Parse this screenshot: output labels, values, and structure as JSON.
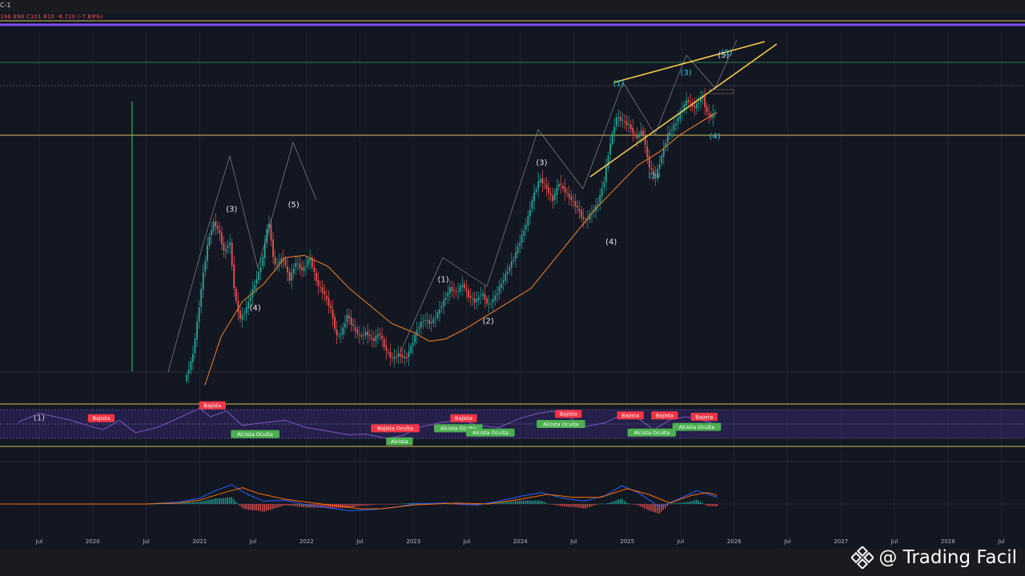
{
  "header": {
    "symbol": "C-1",
    "ohlc": "196.898 C101.810 -8.720 (-7.89%)"
  },
  "watermark": {
    "logo": "binance-diamond-icon",
    "text": "@ Trading Facil"
  },
  "colors": {
    "background": "#131722",
    "bull": "#26a69a",
    "bear": "#ef5350",
    "ma": "#e0792a",
    "rsi": "#7e57c2",
    "macd": "#2962ff",
    "signal": "#ff6d00",
    "wedge": "#f7c948",
    "purple_band": "#7b4dff",
    "bull_label": "#4caf50",
    "bear_label": "#f23645",
    "wave_white": "#e6e6e6",
    "wave_teal": "#26c6da"
  },
  "chart_data": {
    "type": "line",
    "x_axis": {
      "ticks": [
        "Jul",
        "2020",
        "Jul",
        "2021",
        "Jul",
        "2022",
        "Jul",
        "2023",
        "Jul",
        "2024",
        "Jul",
        "2025",
        "Jul",
        "2026",
        "Jul",
        "2027",
        "Jul",
        "2028",
        "Jul"
      ]
    },
    "price": {
      "points": [
        [
          2020.88,
          -2
        ],
        [
          2020.95,
          3
        ],
        [
          2021.0,
          12
        ],
        [
          2021.05,
          22
        ],
        [
          2021.1,
          30
        ],
        [
          2021.15,
          34
        ],
        [
          2021.2,
          32
        ],
        [
          2021.25,
          27
        ],
        [
          2021.3,
          30
        ],
        [
          2021.35,
          17
        ],
        [
          2021.4,
          12
        ],
        [
          2021.45,
          14
        ],
        [
          2021.52,
          19
        ],
        [
          2021.58,
          23
        ],
        [
          2021.62,
          27
        ],
        [
          2021.66,
          35
        ],
        [
          2021.72,
          24
        ],
        [
          2021.8,
          26
        ],
        [
          2021.86,
          21
        ],
        [
          2021.92,
          25
        ],
        [
          2021.98,
          23
        ],
        [
          2022.05,
          26
        ],
        [
          2022.12,
          20
        ],
        [
          2022.18,
          18
        ],
        [
          2022.25,
          14
        ],
        [
          2022.3,
          8
        ],
        [
          2022.35,
          9
        ],
        [
          2022.4,
          13
        ],
        [
          2022.46,
          10
        ],
        [
          2022.52,
          8
        ],
        [
          2022.58,
          9
        ],
        [
          2022.64,
          7
        ],
        [
          2022.7,
          9
        ],
        [
          2022.76,
          5
        ],
        [
          2022.82,
          3
        ],
        [
          2022.88,
          4
        ],
        [
          2022.95,
          3
        ],
        [
          2023.0,
          6
        ],
        [
          2023.06,
          10
        ],
        [
          2023.12,
          12
        ],
        [
          2023.18,
          11
        ],
        [
          2023.24,
          13
        ],
        [
          2023.3,
          16
        ],
        [
          2023.36,
          19
        ],
        [
          2023.42,
          18
        ],
        [
          2023.48,
          20
        ],
        [
          2023.54,
          17
        ],
        [
          2023.6,
          16
        ],
        [
          2023.66,
          18
        ],
        [
          2023.72,
          15
        ],
        [
          2023.78,
          17
        ],
        [
          2023.84,
          20
        ],
        [
          2023.9,
          23
        ],
        [
          2023.96,
          26
        ],
        [
          2024.02,
          30
        ],
        [
          2024.08,
          34
        ],
        [
          2024.14,
          40
        ],
        [
          2024.2,
          44
        ],
        [
          2024.26,
          42
        ],
        [
          2024.32,
          39
        ],
        [
          2024.38,
          43
        ],
        [
          2024.44,
          41
        ],
        [
          2024.5,
          39
        ],
        [
          2024.56,
          37
        ],
        [
          2024.62,
          34
        ],
        [
          2024.68,
          36
        ],
        [
          2024.74,
          38
        ],
        [
          2024.8,
          43
        ],
        [
          2024.86,
          52
        ],
        [
          2024.92,
          58
        ],
        [
          2024.98,
          57
        ],
        [
          2025.04,
          56
        ],
        [
          2025.1,
          53
        ],
        [
          2025.16,
          55
        ],
        [
          2025.22,
          47
        ],
        [
          2025.28,
          44
        ],
        [
          2025.34,
          49
        ],
        [
          2025.4,
          54
        ],
        [
          2025.46,
          56
        ],
        [
          2025.52,
          59
        ],
        [
          2025.58,
          62
        ],
        [
          2025.64,
          60
        ],
        [
          2025.68,
          61
        ],
        [
          2025.72,
          63
        ],
        [
          2025.76,
          59
        ],
        [
          2025.8,
          58
        ],
        [
          2025.84,
          59
        ]
      ]
    },
    "ma": {
      "points": [
        [
          2021.05,
          -3
        ],
        [
          2021.2,
          8
        ],
        [
          2021.4,
          16
        ],
        [
          2021.6,
          20
        ],
        [
          2021.8,
          26
        ],
        [
          2021.98,
          26.5
        ],
        [
          2022.2,
          24
        ],
        [
          2022.4,
          19
        ],
        [
          2022.6,
          15
        ],
        [
          2022.8,
          11
        ],
        [
          2023.0,
          9
        ],
        [
          2023.15,
          7
        ],
        [
          2023.3,
          7.5
        ],
        [
          2023.5,
          10
        ],
        [
          2023.7,
          13
        ],
        [
          2023.9,
          16
        ],
        [
          2024.1,
          19
        ],
        [
          2024.3,
          25
        ],
        [
          2024.5,
          31
        ],
        [
          2024.7,
          37
        ],
        [
          2024.9,
          42
        ],
        [
          2025.1,
          47
        ],
        [
          2025.3,
          50
        ],
        [
          2025.5,
          54
        ],
        [
          2025.7,
          57
        ],
        [
          2025.84,
          59
        ]
      ]
    },
    "rsi": {
      "upper_band": 70,
      "lower_band": 30,
      "points": [
        [
          2019.3,
          52
        ],
        [
          2019.5,
          65
        ],
        [
          2019.65,
          60
        ],
        [
          2019.8,
          55
        ],
        [
          2019.95,
          48
        ],
        [
          2020.1,
          42
        ],
        [
          2020.25,
          55
        ],
        [
          2020.4,
          38
        ],
        [
          2020.6,
          45
        ],
        [
          2020.8,
          58
        ],
        [
          2021.0,
          72
        ],
        [
          2021.1,
          60
        ],
        [
          2021.25,
          68
        ],
        [
          2021.4,
          48
        ],
        [
          2021.6,
          52
        ],
        [
          2021.8,
          55
        ],
        [
          2022.0,
          45
        ],
        [
          2022.2,
          40
        ],
        [
          2022.4,
          35
        ],
        [
          2022.55,
          36
        ],
        [
          2022.75,
          30
        ],
        [
          2022.9,
          34
        ],
        [
          2023.05,
          45
        ],
        [
          2023.25,
          52
        ],
        [
          2023.45,
          56
        ],
        [
          2023.6,
          48
        ],
        [
          2023.8,
          45
        ],
        [
          2024.0,
          58
        ],
        [
          2024.15,
          64
        ],
        [
          2024.3,
          68
        ],
        [
          2024.45,
          60
        ],
        [
          2024.6,
          46
        ],
        [
          2024.8,
          52
        ],
        [
          2024.95,
          63
        ],
        [
          2025.1,
          58
        ],
        [
          2025.25,
          42
        ],
        [
          2025.4,
          56
        ],
        [
          2025.55,
          60
        ],
        [
          2025.7,
          55
        ],
        [
          2025.84,
          50
        ]
      ]
    },
    "macd": {
      "macd_points": [
        [
          2019.0,
          0
        ],
        [
          2020.5,
          0
        ],
        [
          2020.8,
          2
        ],
        [
          2021.0,
          6
        ],
        [
          2021.15,
          14
        ],
        [
          2021.3,
          20
        ],
        [
          2021.45,
          10
        ],
        [
          2021.6,
          3
        ],
        [
          2021.8,
          4
        ],
        [
          2022.0,
          -1
        ],
        [
          2022.2,
          -4
        ],
        [
          2022.4,
          -7
        ],
        [
          2022.6,
          -6
        ],
        [
          2022.8,
          -4
        ],
        [
          2023.0,
          0
        ],
        [
          2023.3,
          1
        ],
        [
          2023.6,
          -1
        ],
        [
          2023.8,
          3
        ],
        [
          2024.0,
          8
        ],
        [
          2024.2,
          12
        ],
        [
          2024.4,
          6
        ],
        [
          2024.6,
          3
        ],
        [
          2024.8,
          9
        ],
        [
          2024.95,
          19
        ],
        [
          2025.1,
          12
        ],
        [
          2025.3,
          -3
        ],
        [
          2025.5,
          6
        ],
        [
          2025.65,
          14
        ],
        [
          2025.84,
          7
        ]
      ],
      "signal_points": [
        [
          2019.0,
          0
        ],
        [
          2020.5,
          0
        ],
        [
          2020.8,
          1
        ],
        [
          2021.0,
          4
        ],
        [
          2021.2,
          11
        ],
        [
          2021.4,
          17
        ],
        [
          2021.55,
          11
        ],
        [
          2021.8,
          5
        ],
        [
          2022.0,
          2
        ],
        [
          2022.3,
          -2
        ],
        [
          2022.5,
          -5
        ],
        [
          2022.7,
          -5
        ],
        [
          2023.0,
          -1
        ],
        [
          2023.4,
          1
        ],
        [
          2023.7,
          0
        ],
        [
          2024.0,
          5
        ],
        [
          2024.25,
          10
        ],
        [
          2024.5,
          7
        ],
        [
          2024.75,
          7
        ],
        [
          2025.0,
          16
        ],
        [
          2025.2,
          10
        ],
        [
          2025.4,
          1
        ],
        [
          2025.6,
          9
        ],
        [
          2025.75,
          12
        ],
        [
          2025.84,
          9
        ]
      ]
    },
    "elliott_waves": [
      {
        "label": "(1)",
        "x": 2019.5,
        "y": -11,
        "color": "white"
      },
      {
        "label": "(3)",
        "x": 2021.3,
        "y": 36.5,
        "color": "white"
      },
      {
        "label": "(4)",
        "x": 2021.52,
        "y": 14,
        "color": "white"
      },
      {
        "label": "(5)",
        "x": 2021.88,
        "y": 37.5,
        "color": "white"
      },
      {
        "label": "(1)",
        "x": 2023.28,
        "y": 20.5,
        "color": "white"
      },
      {
        "label": "(2)",
        "x": 2023.7,
        "y": 11,
        "color": "white"
      },
      {
        "label": "(3)",
        "x": 2024.2,
        "y": 47,
        "color": "white"
      },
      {
        "label": "(4)",
        "x": 2024.85,
        "y": 29,
        "color": "white"
      },
      {
        "label": "(1)",
        "x": 2024.92,
        "y": 65,
        "color": "teal"
      },
      {
        "label": "(2)",
        "x": 2025.25,
        "y": 44,
        "color": "teal"
      },
      {
        "label": "(3)",
        "x": 2025.55,
        "y": 67.5,
        "color": "teal"
      },
      {
        "label": "(4)",
        "x": 2025.82,
        "y": 53,
        "color": "teal"
      },
      {
        "label": "(5)",
        "x": 2025.9,
        "y": 71.5,
        "color": "white"
      },
      {
        "label": "(5)",
        "x": 2025.93,
        "y": 72,
        "color": "teal"
      }
    ],
    "rsi_signals": [
      {
        "text": "Bajista",
        "x": 2020.08,
        "y": 58,
        "type": "bear"
      },
      {
        "text": "Bajista",
        "x": 2021.12,
        "y": 76,
        "type": "bear"
      },
      {
        "text": "Alcista Oculta",
        "x": 2021.52,
        "y": 36,
        "type": "bull"
      },
      {
        "text": "Bajista Oculta",
        "x": 2022.83,
        "y": 44,
        "type": "bear"
      },
      {
        "text": "Alcista",
        "x": 2022.87,
        "y": 26,
        "type": "bull"
      },
      {
        "text": "Bajista",
        "x": 2023.47,
        "y": 58,
        "type": "bear"
      },
      {
        "text": "Alcista Oculta",
        "x": 2023.42,
        "y": 44,
        "type": "bull"
      },
      {
        "text": "Alcista Oculta",
        "x": 2023.72,
        "y": 38,
        "type": "bull"
      },
      {
        "text": "Bajista",
        "x": 2024.45,
        "y": 64,
        "type": "bear"
      },
      {
        "text": "Alcista Oculta",
        "x": 2024.38,
        "y": 50,
        "type": "bull"
      },
      {
        "text": "Bajista",
        "x": 2025.03,
        "y": 62,
        "type": "bear"
      },
      {
        "text": "Alcista Oculta",
        "x": 2025.23,
        "y": 38,
        "type": "bull"
      },
      {
        "text": "Bajista",
        "x": 2025.35,
        "y": 62,
        "type": "bear"
      },
      {
        "text": "Alcista Oculta",
        "x": 2025.65,
        "y": 46,
        "type": "bull"
      },
      {
        "text": "Bajista",
        "x": 2025.72,
        "y": 60,
        "type": "bear"
      }
    ]
  }
}
